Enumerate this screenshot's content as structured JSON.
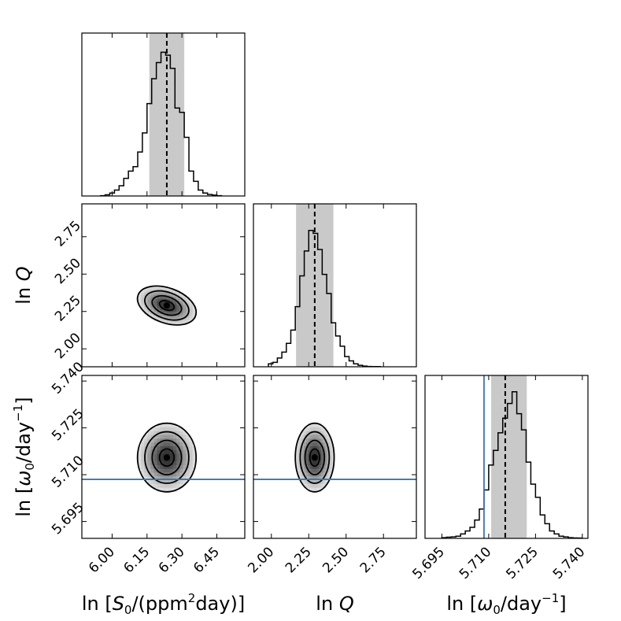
{
  "chart_data": {
    "type": "corner",
    "parameters": [
      {
        "symbol": "S0",
        "label": {
          "pre": "ln [",
          "sym": "S",
          "sub": "0",
          "post": "/(ppm",
          "sup": "2",
          "end": "day)]"
        },
        "range": [
          5.87,
          6.57
        ],
        "ticks": [
          "6.00",
          "6.15",
          "6.30",
          "6.45"
        ],
        "tick_values": [
          6.0,
          6.15,
          6.3,
          6.45
        ],
        "median": 6.235,
        "ci": [
          6.16,
          6.31
        ]
      },
      {
        "symbol": "Q",
        "label": {
          "pre": "ln ",
          "sym": "Q"
        },
        "range": [
          1.88,
          2.97
        ],
        "ticks": [
          "2.00",
          "2.25",
          "2.50",
          "2.75"
        ],
        "tick_values": [
          2.0,
          2.25,
          2.5,
          2.75
        ],
        "median": 2.29,
        "ci": [
          2.165,
          2.415
        ]
      },
      {
        "symbol": "omega0",
        "label": {
          "pre": "ln [",
          "sym": "ω",
          "sub": "0",
          "post": "/day",
          "sup": "−1",
          "end": "]"
        },
        "range": [
          5.6896,
          5.7418
        ],
        "ticks": [
          "5.695",
          "5.710",
          "5.725",
          "5.740"
        ],
        "tick_values": [
          5.695,
          5.71,
          5.725,
          5.74
        ],
        "median": 5.7153,
        "ci": [
          5.7108,
          5.7222
        ],
        "truth": 5.7085
      }
    ],
    "histograms": [
      {
        "param": "S0",
        "bins": [
          5.95,
          5.97,
          5.99,
          6.01,
          6.03,
          6.05,
          6.07,
          6.09,
          6.11,
          6.13,
          6.15,
          6.17,
          6.19,
          6.21,
          6.23,
          6.25,
          6.27,
          6.29,
          6.31,
          6.33,
          6.35,
          6.37,
          6.39,
          6.41,
          6.43,
          6.45,
          6.47
        ],
        "counts": [
          0.002,
          0.008,
          0.02,
          0.04,
          0.07,
          0.12,
          0.17,
          0.2,
          0.3,
          0.43,
          0.63,
          0.8,
          0.91,
          0.98,
          0.96,
          0.87,
          0.6,
          0.57,
          0.4,
          0.17,
          0.1,
          0.04,
          0.02,
          0.01,
          0.006,
          0.002
        ]
      },
      {
        "param": "Q",
        "bins": [
          1.98,
          2.01,
          2.04,
          2.07,
          2.1,
          2.13,
          2.16,
          2.19,
          2.22,
          2.25,
          2.28,
          2.31,
          2.34,
          2.37,
          2.4,
          2.43,
          2.46,
          2.49,
          2.52,
          2.55,
          2.58,
          2.61,
          2.64,
          2.67,
          2.7,
          2.73
        ],
        "counts": [
          0.02,
          0.03,
          0.06,
          0.1,
          0.16,
          0.25,
          0.41,
          0.62,
          0.79,
          0.93,
          0.91,
          0.8,
          0.63,
          0.5,
          0.3,
          0.21,
          0.14,
          0.07,
          0.04,
          0.02,
          0.01,
          0.005,
          0.002,
          0.001,
          0.001
        ]
      },
      {
        "param": "omega0",
        "bins": [
          5.695,
          5.6965,
          5.698,
          5.6995,
          5.701,
          5.7025,
          5.704,
          5.7055,
          5.707,
          5.7085,
          5.71,
          5.7115,
          5.713,
          5.7145,
          5.716,
          5.7175,
          5.719,
          5.7205,
          5.722,
          5.7235,
          5.725,
          5.7265,
          5.728,
          5.7295,
          5.731,
          5.7325,
          5.734,
          5.7355,
          5.737,
          5.7385,
          5.74
        ],
        "counts": [
          0.005,
          0.008,
          0.01,
          0.015,
          0.03,
          0.05,
          0.075,
          0.125,
          0.2,
          0.33,
          0.5,
          0.6,
          0.72,
          0.82,
          0.92,
          1.0,
          0.85,
          0.74,
          0.52,
          0.37,
          0.28,
          0.16,
          0.1,
          0.05,
          0.03,
          0.015,
          0.01,
          0.005,
          0.003,
          0.002
        ]
      }
    ],
    "density_2d": [
      {
        "x": "S0",
        "y": "Q",
        "center": [
          6.235,
          2.29
        ],
        "sd": [
          0.063,
          0.065
        ],
        "corr": -0.35
      },
      {
        "x": "S0",
        "y": "omega0",
        "center": [
          6.235,
          5.7155
        ],
        "sd": [
          0.063,
          0.0055
        ],
        "corr": 0.0
      },
      {
        "x": "Q",
        "y": "omega0",
        "center": [
          2.29,
          5.7155
        ],
        "sd": [
          0.065,
          0.0055
        ],
        "corr": 0.0
      }
    ],
    "contour_levels_sigma": [
      0.5,
      1.0,
      1.5,
      2.0
    ],
    "line_colors": {
      "hist": "#000000",
      "median": "#000000",
      "ci_band": "#c9c9c9",
      "truth": "#3b75af"
    }
  }
}
